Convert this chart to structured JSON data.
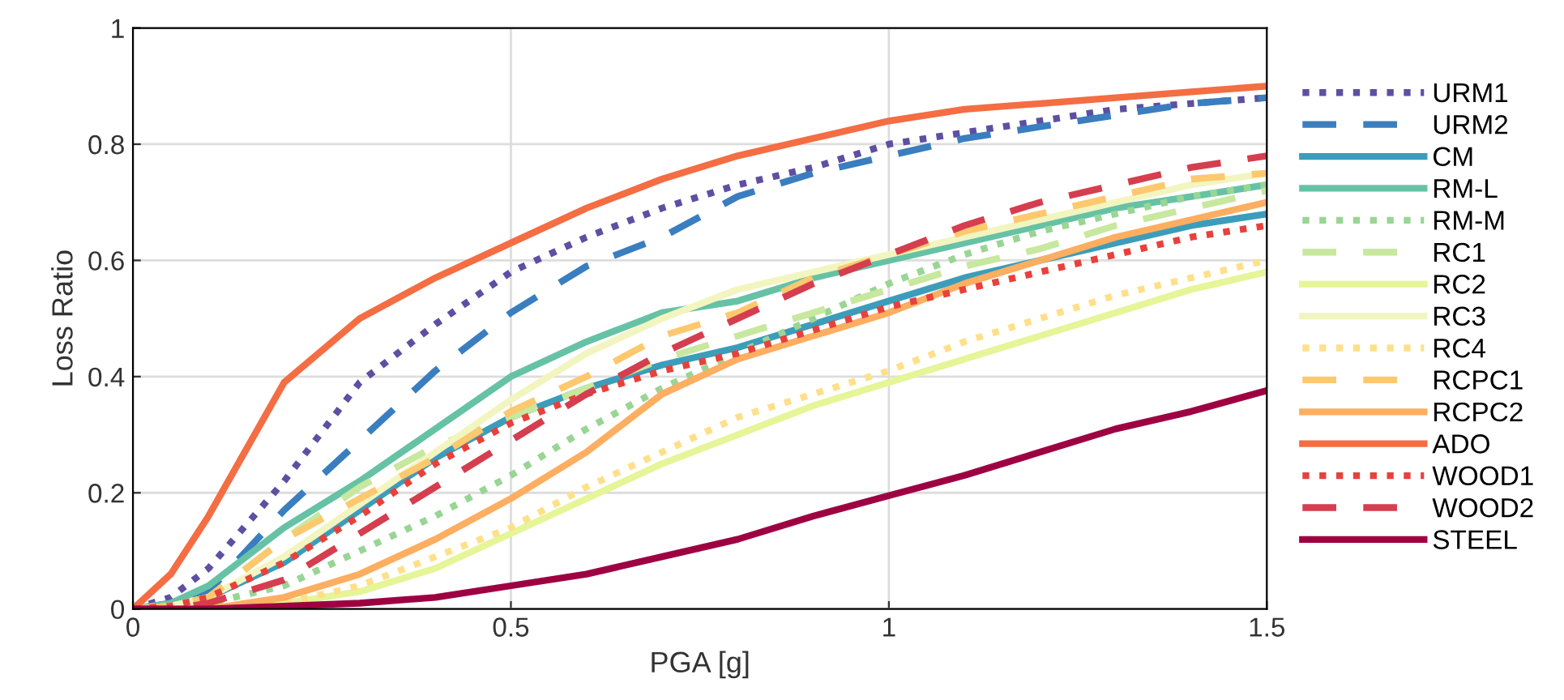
{
  "chart_data": {
    "type": "line",
    "xlabel": "PGA [g]",
    "ylabel": "Loss Ratio",
    "x": [
      0,
      0.05,
      0.1,
      0.2,
      0.3,
      0.4,
      0.5,
      0.6,
      0.7,
      0.8,
      0.9,
      1.0,
      1.1,
      1.2,
      1.3,
      1.4,
      1.5
    ],
    "xlim": [
      0,
      1.5
    ],
    "xticks": [
      0,
      0.5,
      1,
      1.5
    ],
    "ylim": [
      0,
      1
    ],
    "yticks": [
      0,
      0.2,
      0.4,
      0.6,
      0.8,
      1
    ],
    "grid": true,
    "legend": "right",
    "series": [
      {
        "name": "URM1",
        "color": "#5e4fa2",
        "line_style": "dotted",
        "values": [
          0,
          0.02,
          0.07,
          0.22,
          0.39,
          0.49,
          0.58,
          0.64,
          0.69,
          0.73,
          0.76,
          0.8,
          0.82,
          0.84,
          0.86,
          0.87,
          0.88
        ]
      },
      {
        "name": "URM2",
        "color": "#3a7ebf",
        "line_style": "dashed",
        "values": [
          0,
          0.01,
          0.03,
          0.17,
          0.29,
          0.41,
          0.51,
          0.59,
          0.64,
          0.71,
          0.75,
          0.78,
          0.81,
          0.83,
          0.85,
          0.87,
          0.88
        ]
      },
      {
        "name": "CM",
        "color": "#3c9dbb",
        "line_style": "solid",
        "values": [
          0,
          0.005,
          0.02,
          0.08,
          0.17,
          0.26,
          0.33,
          0.38,
          0.42,
          0.45,
          0.49,
          0.53,
          0.57,
          0.6,
          0.63,
          0.66,
          0.68
        ]
      },
      {
        "name": "RM-L",
        "color": "#66c2a5",
        "line_style": "solid",
        "values": [
          0,
          0.01,
          0.04,
          0.14,
          0.22,
          0.31,
          0.4,
          0.46,
          0.51,
          0.53,
          0.57,
          0.6,
          0.63,
          0.66,
          0.69,
          0.71,
          0.73
        ]
      },
      {
        "name": "RM-M",
        "color": "#99d594",
        "line_style": "dotted",
        "values": [
          0,
          0,
          0.01,
          0.04,
          0.1,
          0.16,
          0.23,
          0.31,
          0.38,
          0.44,
          0.5,
          0.56,
          0.61,
          0.65,
          0.68,
          0.71,
          0.73
        ]
      },
      {
        "name": "RC1",
        "color": "#c7e89e",
        "line_style": "dashed",
        "values": [
          0,
          0.005,
          0.02,
          0.12,
          0.21,
          0.28,
          0.33,
          0.38,
          0.43,
          0.47,
          0.51,
          0.55,
          0.59,
          0.62,
          0.66,
          0.69,
          0.72
        ]
      },
      {
        "name": "RC2",
        "color": "#e6f598",
        "line_style": "solid",
        "values": [
          0,
          0,
          0,
          0.01,
          0.03,
          0.07,
          0.13,
          0.19,
          0.25,
          0.3,
          0.35,
          0.39,
          0.43,
          0.47,
          0.51,
          0.55,
          0.58
        ]
      },
      {
        "name": "RC3",
        "color": "#f3f5c0",
        "line_style": "solid",
        "values": [
          0,
          0.005,
          0.02,
          0.09,
          0.18,
          0.27,
          0.36,
          0.44,
          0.5,
          0.55,
          0.58,
          0.61,
          0.64,
          0.67,
          0.7,
          0.73,
          0.75
        ]
      },
      {
        "name": "RC4",
        "color": "#fee08b",
        "line_style": "dotted",
        "values": [
          0,
          0,
          0,
          0.01,
          0.04,
          0.09,
          0.14,
          0.21,
          0.27,
          0.33,
          0.37,
          0.41,
          0.46,
          0.5,
          0.54,
          0.57,
          0.6
        ]
      },
      {
        "name": "RCPC1",
        "color": "#fdc86e",
        "line_style": "dashed",
        "values": [
          0,
          0.005,
          0.02,
          0.12,
          0.19,
          0.26,
          0.34,
          0.4,
          0.47,
          0.51,
          0.57,
          0.61,
          0.65,
          0.68,
          0.71,
          0.74,
          0.75
        ]
      },
      {
        "name": "RCPC2",
        "color": "#fdae61",
        "line_style": "solid",
        "values": [
          0,
          0,
          0,
          0.02,
          0.06,
          0.12,
          0.19,
          0.27,
          0.37,
          0.43,
          0.47,
          0.51,
          0.56,
          0.6,
          0.64,
          0.67,
          0.7
        ]
      },
      {
        "name": "ADO",
        "color": "#f46d43",
        "line_style": "solid",
        "values": [
          0,
          0.06,
          0.16,
          0.39,
          0.5,
          0.57,
          0.63,
          0.69,
          0.74,
          0.78,
          0.81,
          0.84,
          0.86,
          0.87,
          0.88,
          0.89,
          0.9
        ]
      },
      {
        "name": "WOOD1",
        "color": "#e8413c",
        "line_style": "dotted",
        "values": [
          0,
          0.005,
          0.02,
          0.08,
          0.16,
          0.25,
          0.32,
          0.37,
          0.41,
          0.44,
          0.48,
          0.52,
          0.55,
          0.58,
          0.61,
          0.64,
          0.66
        ]
      },
      {
        "name": "WOOD2",
        "color": "#d53e4f",
        "line_style": "dashed",
        "values": [
          0,
          0,
          0.01,
          0.05,
          0.13,
          0.21,
          0.29,
          0.37,
          0.44,
          0.5,
          0.56,
          0.61,
          0.66,
          0.7,
          0.73,
          0.76,
          0.78
        ]
      },
      {
        "name": "STEEL",
        "color": "#9e0142",
        "line_style": "solid",
        "values": [
          0,
          0,
          0,
          0.005,
          0.01,
          0.02,
          0.04,
          0.06,
          0.09,
          0.12,
          0.16,
          0.195,
          0.23,
          0.27,
          0.31,
          0.34,
          0.376
        ]
      }
    ]
  }
}
